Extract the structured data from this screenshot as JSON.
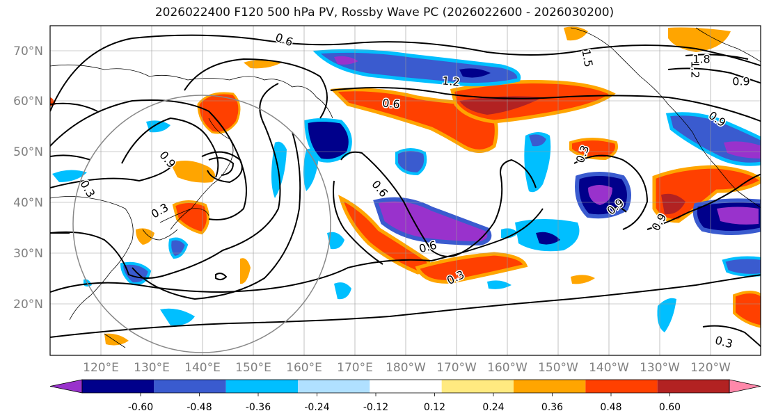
{
  "title": "2026022400 F120 500 hPa PV, Rossby Wave PC (2026022600 - 2026030200)",
  "lat_labels": [
    "70°N",
    "60°N",
    "50°N",
    "40°N",
    "30°N",
    "20°N"
  ],
  "lon_labels": [
    "120°E",
    "130°E",
    "140°E",
    "150°E",
    "160°E",
    "170°E",
    "180°W",
    "170°W",
    "160°W",
    "150°W",
    "140°W",
    "130°W",
    "120°W"
  ],
  "contour_labels": [
    {
      "text": "0.6"
    },
    {
      "text": "0.6"
    },
    {
      "text": "0.6"
    },
    {
      "text": "0.6"
    },
    {
      "text": "0.3"
    },
    {
      "text": "0.3"
    },
    {
      "text": "0.3"
    },
    {
      "text": "0.3"
    },
    {
      "text": "0.3"
    },
    {
      "text": "0.9"
    },
    {
      "text": "0.9"
    },
    {
      "text": "0.9"
    },
    {
      "text": "0.9"
    },
    {
      "text": "0.9"
    },
    {
      "text": "1.2"
    },
    {
      "text": "1.2"
    },
    {
      "text": "1.5"
    },
    {
      "text": "1.8"
    }
  ],
  "colorbar": {
    "colors": [
      "#9932cc",
      "#00008b",
      "#3a5bcf",
      "#00bfff",
      "#b0e0ff",
      "#ffffff",
      "#ffea80",
      "#ffa500",
      "#ff4000",
      "#b22222",
      "#ff88aa"
    ],
    "ticks": [
      "-0.60",
      "-0.48",
      "-0.36",
      "-0.24",
      "-0.12",
      "0.12",
      "0.24",
      "0.36",
      "0.48",
      "0.60"
    ]
  }
}
